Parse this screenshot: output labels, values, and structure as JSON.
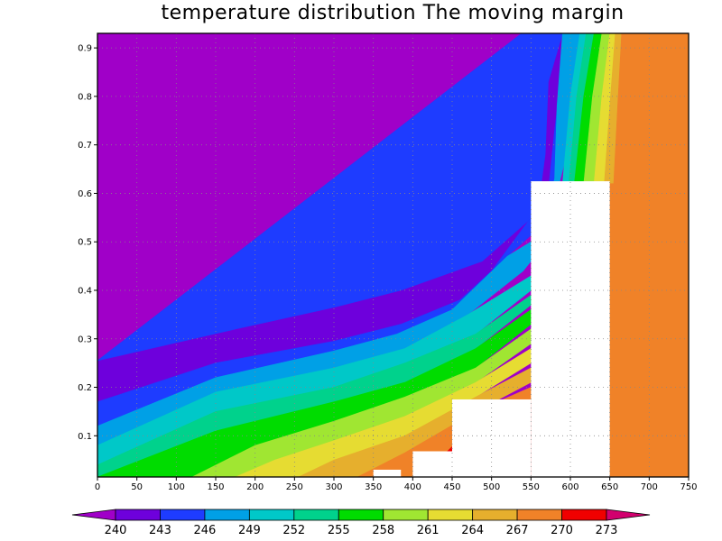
{
  "chart_data": {
    "type": "contour",
    "title": "temperature distribution The moving margin",
    "xlabel": "",
    "ylabel": "",
    "xlim": [
      0,
      750
    ],
    "ylim": [
      0.015,
      0.93
    ],
    "x_ticks": [
      0,
      50,
      100,
      150,
      200,
      250,
      300,
      350,
      400,
      450,
      500,
      550,
      600,
      650,
      700,
      750
    ],
    "y_ticks": [
      0.1,
      0.2,
      0.3,
      0.4,
      0.5,
      0.6,
      0.7,
      0.8,
      0.9
    ],
    "grid": true,
    "colorbar": {
      "levels": [
        240,
        243,
        246,
        249,
        252,
        255,
        258,
        261,
        264,
        267,
        270,
        273
      ],
      "colors": [
        "#a000c8",
        "#6e00dc",
        "#1e3cff",
        "#00a0e6",
        "#00c8c8",
        "#00d28c",
        "#00dc00",
        "#a0e632",
        "#e6dc32",
        "#e6af2d",
        "#f08228",
        "#f00000",
        "#d2006e"
      ]
    },
    "bands": [
      {
        "color": "#a000c8",
        "points": [
          [
            0,
            0.93
          ],
          [
            300,
            0.93
          ],
          [
            407,
            0.66
          ],
          [
            475,
            0.625
          ],
          [
            430,
            0.47
          ],
          [
            318,
            0.385
          ],
          [
            175,
            0.32
          ],
          [
            0,
            0.255
          ]
        ]
      },
      {
        "color": "#6e00dc",
        "points": [
          [
            300,
            0.93
          ],
          [
            538,
            0.93
          ],
          [
            538,
            0.68
          ],
          [
            530,
            0.56
          ],
          [
            478,
            0.47
          ],
          [
            380,
            0.4
          ],
          [
            300,
            0.365
          ],
          [
            175,
            0.32
          ],
          [
            0,
            0.255
          ],
          [
            0,
            0.17
          ],
          [
            150,
            0.25
          ],
          [
            300,
            0.295
          ],
          [
            385,
            0.33
          ],
          [
            460,
            0.38
          ],
          [
            500,
            0.44
          ],
          [
            550,
            0.55
          ],
          [
            573,
            0.62
          ],
          [
            580,
            0.73
          ],
          [
            595,
            0.93
          ]
        ]
      },
      {
        "color": "#1e3cff",
        "points": [
          [
            538,
            0.93
          ],
          [
            590,
            0.93
          ],
          [
            572,
            0.83
          ],
          [
            568,
            0.68
          ],
          [
            558,
            0.56
          ],
          [
            488,
            0.46
          ],
          [
            385,
            0.4
          ],
          [
            300,
            0.365
          ],
          [
            175,
            0.32
          ],
          [
            0,
            0.255
          ]
        ]
      },
      {
        "color": "#1e3cff",
        "points": [
          [
            0,
            0.17
          ],
          [
            150,
            0.25
          ],
          [
            300,
            0.295
          ],
          [
            385,
            0.33
          ],
          [
            460,
            0.38
          ],
          [
            500,
            0.44
          ],
          [
            550,
            0.55
          ],
          [
            573,
            0.62
          ],
          [
            580,
            0.73
          ],
          [
            595,
            0.93
          ],
          [
            612,
            0.93
          ],
          [
            597,
            0.8
          ],
          [
            588,
            0.64
          ],
          [
            575,
            0.55
          ],
          [
            520,
            0.47
          ],
          [
            450,
            0.36
          ],
          [
            380,
            0.31
          ],
          [
            300,
            0.275
          ],
          [
            150,
            0.22
          ],
          [
            0,
            0.12
          ]
        ]
      },
      {
        "color": "#00a0e6",
        "points": [
          [
            0,
            0.12
          ],
          [
            150,
            0.22
          ],
          [
            300,
            0.275
          ],
          [
            380,
            0.31
          ],
          [
            450,
            0.36
          ],
          [
            520,
            0.47
          ],
          [
            550,
            0.5
          ],
          [
            550,
            0.46
          ],
          [
            540,
            0.44
          ],
          [
            470,
            0.35
          ],
          [
            390,
            0.28
          ],
          [
            300,
            0.24
          ],
          [
            150,
            0.19
          ],
          [
            0,
            0.08
          ]
        ]
      },
      {
        "color": "#00c8c8",
        "points": [
          [
            0,
            0.08
          ],
          [
            150,
            0.19
          ],
          [
            300,
            0.24
          ],
          [
            390,
            0.28
          ],
          [
            470,
            0.35
          ],
          [
            550,
            0.43
          ],
          [
            550,
            0.4
          ],
          [
            480,
            0.31
          ],
          [
            390,
            0.25
          ],
          [
            300,
            0.2
          ],
          [
            150,
            0.15
          ],
          [
            0,
            0.04
          ]
        ]
      },
      {
        "color": "#00d28c",
        "points": [
          [
            0,
            0.04
          ],
          [
            150,
            0.15
          ],
          [
            300,
            0.2
          ],
          [
            390,
            0.25
          ],
          [
            480,
            0.31
          ],
          [
            550,
            0.39
          ],
          [
            550,
            0.37
          ],
          [
            480,
            0.28
          ],
          [
            390,
            0.21
          ],
          [
            300,
            0.17
          ],
          [
            150,
            0.11
          ],
          [
            0,
            0.015
          ]
        ]
      },
      {
        "color": "#00dc00",
        "points": [
          [
            0,
            0.015
          ],
          [
            150,
            0.11
          ],
          [
            300,
            0.17
          ],
          [
            390,
            0.21
          ],
          [
            480,
            0.28
          ],
          [
            550,
            0.36
          ],
          [
            550,
            0.33
          ],
          [
            480,
            0.24
          ],
          [
            390,
            0.18
          ],
          [
            300,
            0.13
          ],
          [
            200,
            0.08
          ],
          [
            120,
            0.015
          ]
        ]
      },
      {
        "color": "#a0e632",
        "points": [
          [
            120,
            0.015
          ],
          [
            200,
            0.08
          ],
          [
            300,
            0.13
          ],
          [
            390,
            0.18
          ],
          [
            480,
            0.24
          ],
          [
            550,
            0.32
          ],
          [
            550,
            0.29
          ],
          [
            480,
            0.21
          ],
          [
            390,
            0.14
          ],
          [
            300,
            0.09
          ],
          [
            225,
            0.05
          ],
          [
            175,
            0.015
          ]
        ]
      },
      {
        "color": "#e6dc32",
        "points": [
          [
            175,
            0.015
          ],
          [
            225,
            0.05
          ],
          [
            300,
            0.09
          ],
          [
            390,
            0.14
          ],
          [
            480,
            0.21
          ],
          [
            550,
            0.28
          ],
          [
            550,
            0.25
          ],
          [
            480,
            0.18
          ],
          [
            390,
            0.1
          ],
          [
            300,
            0.05
          ],
          [
            255,
            0.015
          ]
        ]
      },
      {
        "color": "#e6af2d",
        "points": [
          [
            255,
            0.015
          ],
          [
            300,
            0.05
          ],
          [
            390,
            0.1
          ],
          [
            480,
            0.18
          ],
          [
            550,
            0.24
          ],
          [
            550,
            0.21
          ],
          [
            480,
            0.15
          ],
          [
            390,
            0.065
          ],
          [
            330,
            0.015
          ]
        ]
      },
      {
        "color": "#f08228",
        "points": [
          [
            330,
            0.015
          ],
          [
            390,
            0.065
          ],
          [
            480,
            0.15
          ],
          [
            550,
            0.2
          ],
          [
            550,
            0.17
          ],
          [
            480,
            0.125
          ],
          [
            420,
            0.03
          ],
          [
            400,
            0.015
          ]
        ]
      },
      {
        "color": "#f00000",
        "points": [
          [
            400,
            0.015
          ],
          [
            420,
            0.03
          ],
          [
            480,
            0.125
          ],
          [
            550,
            0.17
          ],
          [
            550,
            0.16
          ],
          [
            460,
            0.07
          ],
          [
            430,
            0.015
          ]
        ]
      },
      {
        "color": "#f00000",
        "points": [
          [
            440,
            0.015
          ],
          [
            460,
            0.07
          ],
          [
            550,
            0.16
          ],
          [
            550,
            0.015
          ]
        ]
      },
      {
        "color": "#00a0e6",
        "points": [
          [
            590,
            0.93
          ],
          [
            612,
            0.93
          ],
          [
            600,
            0.8
          ],
          [
            592,
            0.66
          ],
          [
            575,
            0.55
          ],
          [
            550,
            0.5
          ],
          [
            550,
            0.46
          ],
          [
            560,
            0.5
          ],
          [
            568,
            0.55
          ],
          [
            580,
            0.63
          ],
          [
            583,
            0.78
          ]
        ]
      },
      {
        "color": "#00c8c8",
        "points": [
          [
            612,
            0.93
          ],
          [
            620,
            0.93
          ],
          [
            608,
            0.8
          ],
          [
            598,
            0.62
          ],
          [
            590,
            0.62
          ],
          [
            600,
            0.8
          ]
        ]
      },
      {
        "color": "#00d28c",
        "points": [
          [
            620,
            0.93
          ],
          [
            630,
            0.93
          ],
          [
            617,
            0.8
          ],
          [
            605,
            0.62
          ],
          [
            598,
            0.62
          ],
          [
            608,
            0.8
          ]
        ]
      },
      {
        "color": "#00dc00",
        "points": [
          [
            630,
            0.93
          ],
          [
            640,
            0.93
          ],
          [
            628,
            0.8
          ],
          [
            617,
            0.62
          ],
          [
            605,
            0.62
          ],
          [
            617,
            0.8
          ]
        ]
      },
      {
        "color": "#a0e632",
        "points": [
          [
            640,
            0.93
          ],
          [
            650,
            0.93
          ],
          [
            640,
            0.8
          ],
          [
            630,
            0.62
          ],
          [
            617,
            0.62
          ],
          [
            628,
            0.8
          ]
        ]
      },
      {
        "color": "#e6dc32",
        "points": [
          [
            650,
            0.93
          ],
          [
            657,
            0.93
          ],
          [
            650,
            0.78
          ],
          [
            643,
            0.62
          ],
          [
            630,
            0.62
          ],
          [
            640,
            0.8
          ]
        ]
      },
      {
        "color": "#e6af2d",
        "points": [
          [
            657,
            0.93
          ],
          [
            665,
            0.93
          ],
          [
            660,
            0.78
          ],
          [
            655,
            0.62
          ],
          [
            643,
            0.62
          ],
          [
            650,
            0.78
          ]
        ]
      },
      {
        "color": "#f08228",
        "points": [
          [
            665,
            0.93
          ],
          [
            750,
            0.93
          ],
          [
            750,
            0.015
          ],
          [
            650,
            0.015
          ],
          [
            650,
            0.62
          ],
          [
            655,
            0.62
          ],
          [
            660,
            0.78
          ]
        ]
      }
    ],
    "masks": [
      {
        "x": [
          350,
          385
        ],
        "y": [
          0.015,
          0.03
        ]
      },
      {
        "x": [
          400,
          450
        ],
        "y": [
          0.015,
          0.068
        ]
      },
      {
        "x": [
          450,
          550
        ],
        "y": [
          0.015,
          0.175
        ]
      },
      {
        "x": [
          550,
          650
        ],
        "y": [
          0.015,
          0.625
        ]
      }
    ]
  }
}
